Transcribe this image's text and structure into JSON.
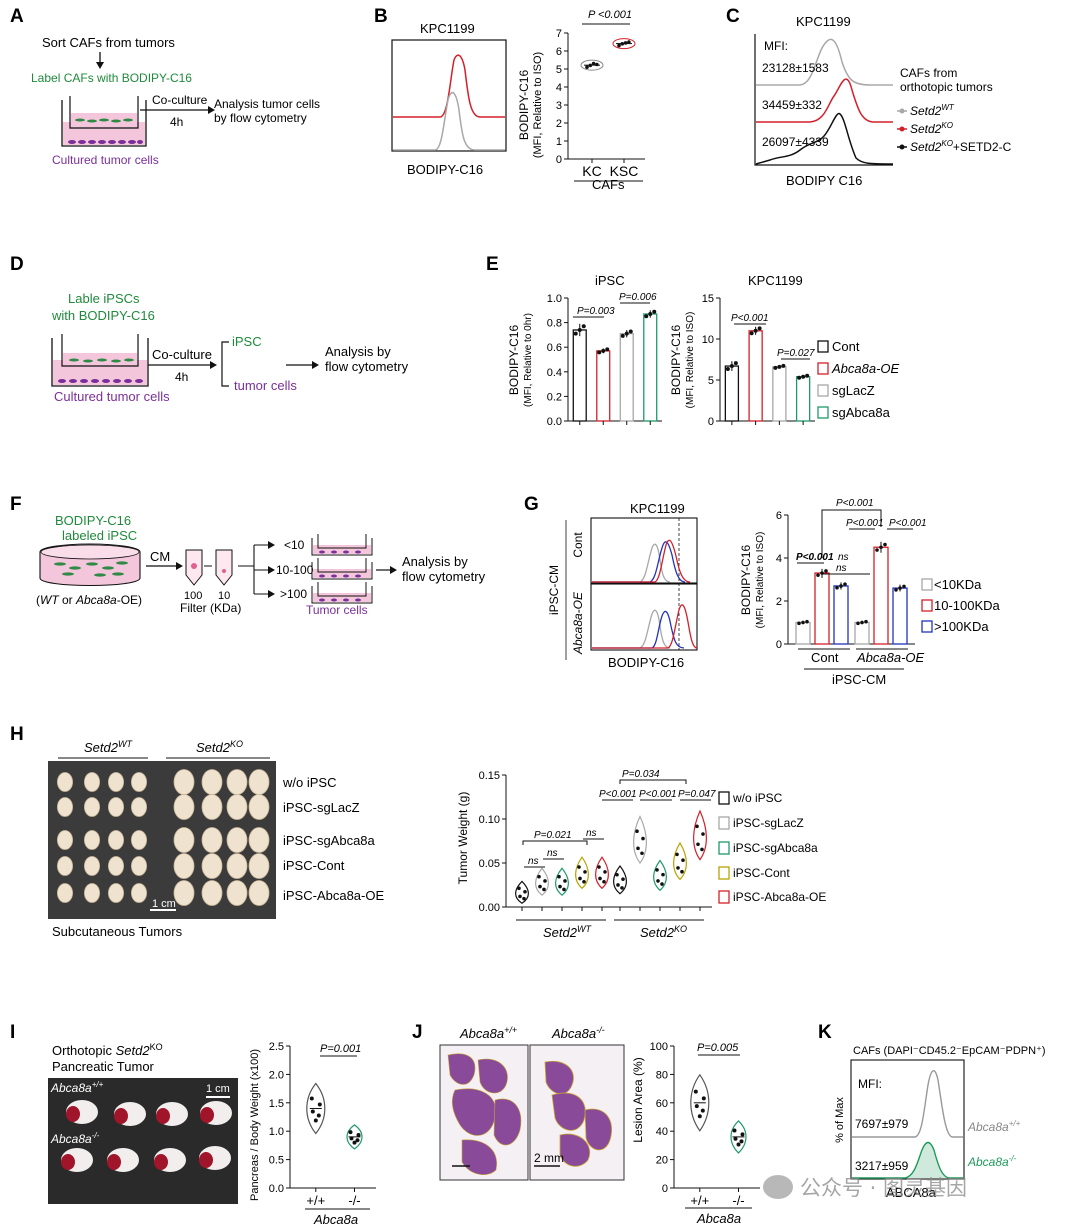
{
  "panels": {
    "A": "A",
    "B": "B",
    "C": "C",
    "D": "D",
    "E": "E",
    "F": "F",
    "G": "G",
    "H": "H",
    "I": "I",
    "J": "J",
    "K": "K"
  },
  "colors": {
    "red": "#d4202a",
    "gray": "#a8a8a8",
    "black": "#111111",
    "green": "#1f9a6a",
    "blue": "#2233bb",
    "yellow": "#b8a300",
    "purple": "#7a2f9a",
    "pink": "#f4c6dc"
  },
  "A": {
    "sort": "Sort CAFs from tumors",
    "label": "Label CAFs with BODIPY-C16",
    "coculture": "Co-culture",
    "time": "4h",
    "analysis1": "Analysis tumor cells",
    "analysis2": "by flow cytometry",
    "cultured": "Cultured tumor cells"
  },
  "B": {
    "hist_title": "KPC1199",
    "hist_xlabel": "BODIPY-C16",
    "ylabel1": "BODIPY-C16",
    "ylabel2": "(MFI, Relative to ISO)",
    "pval": "P <0.001",
    "xgroup": "CAFs"
  },
  "C": {
    "title": "KPC1199",
    "mfi_label": "MFI:",
    "mfi": [
      "23128±1583",
      "34459±332",
      "26097±4339"
    ],
    "xlabel": "BODIPY C16",
    "legend_title1": "CAFs from",
    "legend_title2": "orthotopic tumors",
    "legend": [
      {
        "base": "Setd2",
        "sup": "WT",
        "suffix": ""
      },
      {
        "base": "Setd2",
        "sup": "KO",
        "suffix": ""
      },
      {
        "base": "Setd2",
        "sup": "KO",
        "suffix": "+SETD2-C"
      }
    ]
  },
  "D": {
    "lable1": "Lable iPSCs",
    "lable2": "with BODIPY-C16",
    "coculture": "Co-culture",
    "time": "4h",
    "ipsc": "iPSC",
    "tumor": "tumor cells",
    "analysis1": "Analysis by",
    "analysis2": "flow cytometry",
    "cultured": "Cultured tumor cells"
  },
  "E": {
    "title_left": "iPSC",
    "title_right": "KPC1199",
    "ylabel_left1": "BODIPY-C16",
    "ylabel_left2": "(MFI, Relative to 0hr)",
    "ylabel_right1": "BODIPY-C16",
    "ylabel_right2": "(MFI, Relative to ISO)",
    "p_left": [
      "P=0.003",
      "P=0.006"
    ],
    "p_right": [
      "P<0.001",
      "P=0.027"
    ],
    "legend": [
      "Cont",
      "Abca8a-OE",
      "sgLacZ",
      "sgAbca8a"
    ]
  },
  "F": {
    "label1": "BODIPY-C16",
    "label2": "labeled iPSC",
    "cm": "CM",
    "source_pre": "(",
    "source_wt": "WT",
    "source_mid": " or ",
    "source_oe": "Abca8a",
    "source_post": "-OE)",
    "filter1": "100",
    "filter2": "10",
    "filter_label": "Filter (KDa)",
    "fractions": [
      "<10",
      "10-100",
      ">100"
    ],
    "tumor": "Tumor cells",
    "analysis1": "Analysis by",
    "analysis2": "flow cytometry"
  },
  "G": {
    "title": "KPC1199",
    "row_group": "iPSC-CM",
    "row_labels": [
      "Cont",
      "Abca8a-OE"
    ],
    "xlabel": "BODIPY-C16",
    "ylabel1": "BODIPY-C16",
    "ylabel2": "(MFI, Relative to ISO)",
    "p_top": "P<0.001",
    "p_mid1": "P<0.001",
    "p_mid2": "P<0.001",
    "p_left": "P<0.001",
    "ns1": "ns",
    "ns2": "ns",
    "xgroups": [
      "Cont",
      "Abca8a-OE"
    ],
    "xgroup_title": "iPSC-CM",
    "legend": [
      "<10KDa",
      "10-100KDa",
      ">100KDa"
    ]
  },
  "H": {
    "header_wt_base": "Setd2",
    "header_wt_sup": "WT",
    "header_ko_base": "Setd2",
    "header_ko_sup": "KO",
    "rows": [
      "w/o iPSC",
      "iPSC-sgLacZ",
      "iPSC-sgAbca8a",
      "iPSC-Cont",
      "iPSC-Abca8a-OE"
    ],
    "scale": "1 cm",
    "caption": "Subcutaneous Tumors",
    "ylabel": "Tumor Weight (g)",
    "p_left": "P=0.021",
    "p_top": "P=0.034",
    "p_r1": "P<0.001",
    "p_r2": "P<0.001",
    "p_r3": "P=0.047",
    "ns": "ns",
    "groups": [
      "Setd2",
      "Setd2"
    ],
    "group_sups": [
      "WT",
      "KO"
    ],
    "legend": [
      "w/o iPSC",
      "iPSC-sgLacZ",
      "iPSC-sgAbca8a",
      "iPSC-Cont",
      "iPSC-Abca8a-OE"
    ]
  },
  "I": {
    "title1_pre": "Orthotopic ",
    "title1_gene": "Setd2",
    "title1_sup": "KO",
    "title2": "Pancreatic Tumor",
    "scale": "1 cm",
    "geno_wt": "Abca8a",
    "geno_wt_sup": "+/+",
    "geno_ko": "Abca8a",
    "geno_ko_sup": "-/-",
    "ylabel": "Pancreas / Body Weight (x100)",
    "pval": "P=0.001",
    "xcats": [
      "+/+",
      "-/-"
    ],
    "xtitle": "Abca8a"
  },
  "J": {
    "head_wt": "Abca8a",
    "head_wt_sup": "+/+",
    "head_ko": "Abca8a",
    "head_ko_sup": "-/-",
    "scale": "2 mm",
    "ylabel": "Lesion Area (%)",
    "pval": "P=0.005",
    "xcats": [
      "+/+",
      "-/-"
    ],
    "xtitle": "Abca8a"
  },
  "K": {
    "title": "CAFs (DAPI⁻CD45.2⁻EpCAM⁻PDPN⁺)",
    "mfi_label": "MFI:",
    "mfi": [
      "7697±979",
      "3217±959"
    ],
    "ylabel": "% of Max",
    "xlabel": "ABCA8a",
    "legend_wt": "Abca8a",
    "legend_wt_sup": "+/+",
    "legend_ko": "Abca8a",
    "legend_ko_sup": "-/-"
  },
  "watermark": "公众号 · 图灵基因",
  "chart_data": [
    {
      "id": "B",
      "type": "scatter",
      "categories": [
        "KC",
        "KSC"
      ],
      "ylim": [
        0,
        7
      ],
      "yticks": [
        0,
        1,
        2,
        3,
        4,
        5,
        6,
        7
      ],
      "series": [
        {
          "name": "KC",
          "values": [
            5.1,
            5.2,
            5.3,
            5.25
          ]
        },
        {
          "name": "KSC",
          "values": [
            6.3,
            6.4,
            6.45,
            6.5
          ]
        }
      ]
    },
    {
      "id": "E-left",
      "type": "bar",
      "categories": [
        "Cont",
        "Abca8a-OE",
        "sgLacZ",
        "sgAbca8a"
      ],
      "values": [
        0.74,
        0.57,
        0.71,
        0.87
      ],
      "ylim": [
        0,
        1.0
      ],
      "yticks": [
        0.0,
        0.2,
        0.4,
        0.6,
        0.8,
        1.0
      ]
    },
    {
      "id": "E-right",
      "type": "bar",
      "categories": [
        "Cont",
        "Abca8a-OE",
        "sgLacZ",
        "sgAbca8a"
      ],
      "values": [
        6.7,
        11.0,
        6.6,
        5.4
      ],
      "ylim": [
        0,
        15
      ],
      "yticks": [
        0,
        5,
        10,
        15
      ]
    },
    {
      "id": "G",
      "type": "bar",
      "categories": [
        "Cont",
        "Abca8a-OE"
      ],
      "series": [
        {
          "name": "<10KDa",
          "values": [
            1.0,
            1.0
          ]
        },
        {
          "name": "10-100KDa",
          "values": [
            3.3,
            4.5
          ]
        },
        {
          "name": ">100KDa",
          "values": [
            2.7,
            2.6
          ]
        }
      ],
      "ylim": [
        0,
        6
      ],
      "yticks": [
        0,
        2,
        4,
        6
      ]
    },
    {
      "id": "H",
      "type": "scatter",
      "categories": [
        "w/o iPSC",
        "iPSC-sgLacZ",
        "iPSC-sgAbca8a",
        "iPSC-Cont",
        "iPSC-Abca8a-OE"
      ],
      "series": [
        {
          "name": "Setd2 WT",
          "values": [
            0.016,
            0.028,
            0.028,
            0.038,
            0.038
          ]
        },
        {
          "name": "Setd2 KO",
          "values": [
            0.03,
            0.075,
            0.035,
            0.051,
            0.08
          ]
        }
      ],
      "ylim": [
        0,
        0.15
      ],
      "yticks": [
        0.0,
        0.05,
        0.1,
        0.15
      ]
    },
    {
      "id": "I",
      "type": "scatter",
      "categories": [
        "+/+",
        "-/-"
      ],
      "values": [
        1.4,
        0.9
      ],
      "ylim": [
        0,
        2.5
      ],
      "yticks": [
        0.0,
        0.5,
        1.0,
        1.5,
        2.0,
        2.5
      ]
    },
    {
      "id": "J",
      "type": "scatter",
      "categories": [
        "+/+",
        "-/-"
      ],
      "values": [
        60,
        36
      ],
      "ylim": [
        0,
        100
      ],
      "yticks": [
        0,
        20,
        40,
        60,
        80,
        100
      ]
    }
  ]
}
